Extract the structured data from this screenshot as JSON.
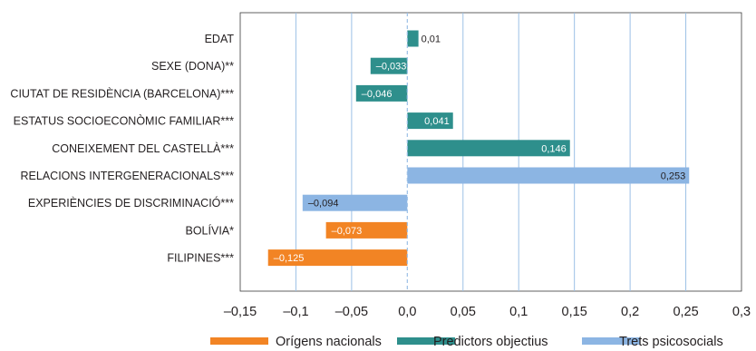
{
  "chart_data": {
    "type": "bar",
    "orientation": "horizontal",
    "categories": [
      "EDAT",
      "SEXE (DONA)**",
      "CIUTAT DE RESIDÈNCIA (BARCELONA)***",
      "ESTATUS SOCIOECONÒMIC FAMILIAR***",
      "CONEIXEMENT DEL CASTELLÀ***",
      "RELACIONS INTERGENERACIONALS***",
      "EXPERIÈNCIES DE DISCRIMINACIÓ***",
      "BOLÍVIA*",
      "FILIPINES***"
    ],
    "values": [
      0.01,
      -0.033,
      -0.046,
      0.041,
      0.146,
      0.253,
      -0.094,
      -0.073,
      -0.125
    ],
    "value_labels": [
      "0,01",
      "–0,033",
      "–0,046",
      "0,041",
      "0,146",
      "0,253",
      "–0,094",
      "–0,073",
      "–0,125"
    ],
    "groups": [
      "Predictors objectius",
      "Predictors objectius",
      "Predictors objectius",
      "Predictors objectius",
      "Predictors objectius",
      "Trets psicosocials",
      "Trets psicosocials",
      "Orígens nacionals",
      "Orígens nacionals"
    ],
    "series": [
      {
        "name": "Orígens nacionals",
        "color": "#f28424"
      },
      {
        "name": "Predictors objectius",
        "color": "#2e8f8c"
      },
      {
        "name": "Trets psicosocials",
        "color": "#8cb5e3"
      }
    ],
    "xlim": [
      -0.15,
      0.3
    ],
    "xticks": [
      -0.15,
      -0.1,
      -0.05,
      0.0,
      0.05,
      0.1,
      0.15,
      0.2,
      0.25,
      0.3
    ],
    "xtick_labels": [
      "–0,15",
      "–0,1",
      "–0,05",
      "0,0",
      "0,05",
      "0,1",
      "0,15",
      "0,2",
      "0,25",
      "0,3"
    ],
    "grid": "vertical",
    "legend_position": "bottom",
    "title": "",
    "xlabel": "",
    "ylabel": ""
  }
}
